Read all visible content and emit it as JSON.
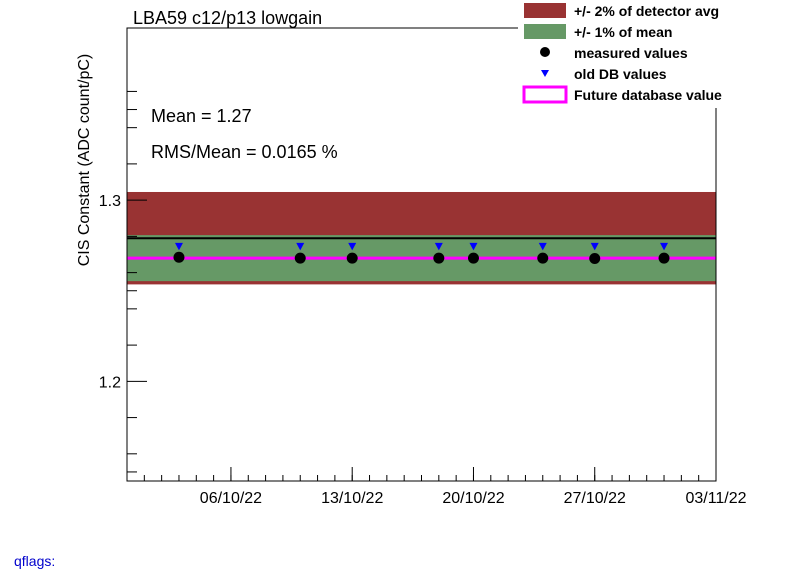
{
  "chart_data": {
    "type": "scatter",
    "title": "LBA59 c12/p13 lowgain",
    "ylabel": "CIS Constant (ADC count/pC)",
    "xlabel": "",
    "xlim": [
      "2022-09-30",
      "2022-11-03"
    ],
    "ylim": [
      1.145,
      1.395
    ],
    "y_ticks": [
      1.2,
      1.3
    ],
    "y_tick_labels": [
      "1.2",
      "1.3"
    ],
    "x_ticks": [
      "2022-10-06",
      "2022-10-13",
      "2022-10-20",
      "2022-10-27",
      "2022-11-03"
    ],
    "x_tick_labels": [
      "06/10/22",
      "13/10/22",
      "20/10/22",
      "27/10/22",
      "03/11/22"
    ],
    "detector_avg_band": {
      "label": "+/- 2% of detector avg",
      "center": 1.279,
      "low": 1.2535,
      "high": 1.3045,
      "color": "#993333"
    },
    "mean_band": {
      "label": "+/- 1% of mean",
      "center": 1.268,
      "low": 1.2553,
      "high": 1.2807,
      "color": "#669966"
    },
    "detector_avg_line": 1.279,
    "future_db_value": {
      "label": "Future database value",
      "value": 1.268,
      "color": "#ff00ff"
    },
    "series": [
      {
        "name": "measured values",
        "marker": "circle",
        "color": "#000000",
        "x": [
          "2022-10-03",
          "2022-10-10",
          "2022-10-13",
          "2022-10-18",
          "2022-10-20",
          "2022-10-24",
          "2022-10-27",
          "2022-10-31"
        ],
        "y": [
          1.2685,
          1.268,
          1.268,
          1.268,
          1.268,
          1.268,
          1.2678,
          1.268
        ]
      },
      {
        "name": "old DB values",
        "marker": "triangle-down",
        "color": "#0000ff",
        "x": [
          "2022-10-03",
          "2022-10-10",
          "2022-10-13",
          "2022-10-18",
          "2022-10-20",
          "2022-10-24",
          "2022-10-27",
          "2022-10-31"
        ],
        "y": [
          1.2745,
          1.2745,
          1.2745,
          1.2745,
          1.2745,
          1.2745,
          1.2745,
          1.2745
        ]
      }
    ],
    "stats": {
      "mean": "Mean = 1.27",
      "rms": "RMS/Mean = 0.0165 %"
    }
  },
  "legend": [
    {
      "label": "+/- 2% of detector avg",
      "kind": "box",
      "color": "#993333"
    },
    {
      "label": "+/- 1% of mean",
      "kind": "box",
      "color": "#669966"
    },
    {
      "label": "measured values",
      "kind": "circle",
      "color": "#000000"
    },
    {
      "label": "old DB values",
      "kind": "triangle",
      "color": "#0000ff"
    },
    {
      "label": "Future database value",
      "kind": "line",
      "color": "#ff00ff"
    }
  ],
  "footer": {
    "qflags": "qflags:"
  }
}
